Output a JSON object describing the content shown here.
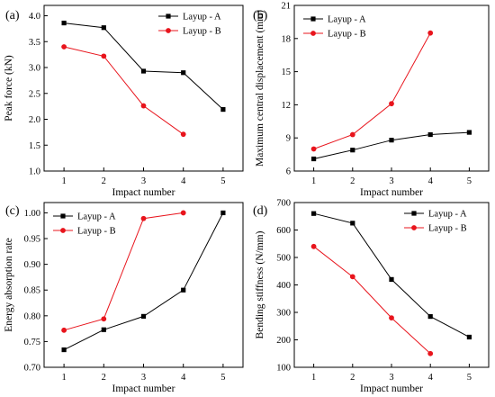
{
  "chart_data": [
    {
      "panel": "(a)",
      "type": "line",
      "xlabel": "Impact number",
      "ylabel": "Peak force (kN)",
      "x_ticks": [
        1,
        2,
        3,
        4,
        5
      ],
      "xlim": [
        0.5,
        5.5
      ],
      "ylim": [
        1.0,
        4.2
      ],
      "y_ticks": [
        1.0,
        1.5,
        2.0,
        2.5,
        3.0,
        3.5,
        4.0
      ],
      "y_tick_labels": [
        "1.0",
        "1.5",
        "2.0",
        "2.5",
        "3.0",
        "3.5",
        "4.0"
      ],
      "legend_position": "top-right",
      "series": [
        {
          "name": "Layup - A",
          "color": "#000000",
          "marker": "square",
          "x": [
            1,
            2,
            3,
            4,
            5
          ],
          "values": [
            3.86,
            3.77,
            2.93,
            2.9,
            2.19
          ]
        },
        {
          "name": "Layup - B",
          "color": "#e8141c",
          "marker": "circle",
          "x": [
            1,
            2,
            3,
            4
          ],
          "values": [
            3.4,
            3.22,
            2.26,
            1.71
          ]
        }
      ]
    },
    {
      "panel": "(b)",
      "type": "line",
      "xlabel": "Impact number",
      "ylabel": "Maximum central displacement (mm)",
      "x_ticks": [
        1,
        2,
        3,
        4,
        5
      ],
      "xlim": [
        0.5,
        5.5
      ],
      "ylim": [
        6,
        21
      ],
      "y_ticks": [
        6,
        9,
        12,
        15,
        18,
        21
      ],
      "y_tick_labels": [
        "6",
        "9",
        "12",
        "15",
        "18",
        "21"
      ],
      "legend_position": "top-left",
      "series": [
        {
          "name": "Layup - A",
          "color": "#000000",
          "marker": "square",
          "x": [
            1,
            2,
            3,
            4,
            5
          ],
          "values": [
            7.1,
            7.9,
            8.8,
            9.3,
            9.5
          ]
        },
        {
          "name": "Layup - B",
          "color": "#e8141c",
          "marker": "circle",
          "x": [
            1,
            2,
            3,
            4
          ],
          "values": [
            8.0,
            9.3,
            12.1,
            18.5
          ]
        }
      ]
    },
    {
      "panel": "(c)",
      "type": "line",
      "xlabel": "Impact number",
      "ylabel": "Energy absorption rate",
      "x_ticks": [
        1,
        2,
        3,
        4,
        5
      ],
      "xlim": [
        0.5,
        5.5
      ],
      "ylim": [
        0.7,
        1.02
      ],
      "y_ticks": [
        0.7,
        0.75,
        0.8,
        0.85,
        0.9,
        0.95,
        1.0
      ],
      "y_tick_labels": [
        "0.70",
        "0.75",
        "0.80",
        "0.85",
        "0.90",
        "0.95",
        "1.00"
      ],
      "legend_position": "top-left",
      "series": [
        {
          "name": "Layup - A",
          "color": "#000000",
          "marker": "square",
          "x": [
            1,
            2,
            3,
            4,
            5
          ],
          "values": [
            0.734,
            0.773,
            0.799,
            0.85,
            1.0
          ]
        },
        {
          "name": "Layup - B",
          "color": "#e8141c",
          "marker": "circle",
          "x": [
            1,
            2,
            3,
            4
          ],
          "values": [
            0.772,
            0.794,
            0.989,
            1.0
          ]
        }
      ]
    },
    {
      "panel": "(d)",
      "type": "line",
      "xlabel": "Impact number",
      "ylabel": "Bending stiffness (N/mm)",
      "x_ticks": [
        1,
        2,
        3,
        4,
        5
      ],
      "xlim": [
        0.5,
        5.5
      ],
      "ylim": [
        100,
        700
      ],
      "y_ticks": [
        100,
        200,
        300,
        400,
        500,
        600,
        700
      ],
      "y_tick_labels": [
        "100",
        "200",
        "300",
        "400",
        "500",
        "600",
        "700"
      ],
      "legend_position": "top-right",
      "series": [
        {
          "name": "Layup - A",
          "color": "#000000",
          "marker": "square",
          "x": [
            1,
            2,
            3,
            4,
            5
          ],
          "values": [
            660,
            625,
            420,
            285,
            210
          ]
        },
        {
          "name": "Layup - B",
          "color": "#e8141c",
          "marker": "circle",
          "x": [
            1,
            2,
            3,
            4
          ],
          "values": [
            540,
            430,
            280,
            150
          ]
        }
      ]
    }
  ]
}
